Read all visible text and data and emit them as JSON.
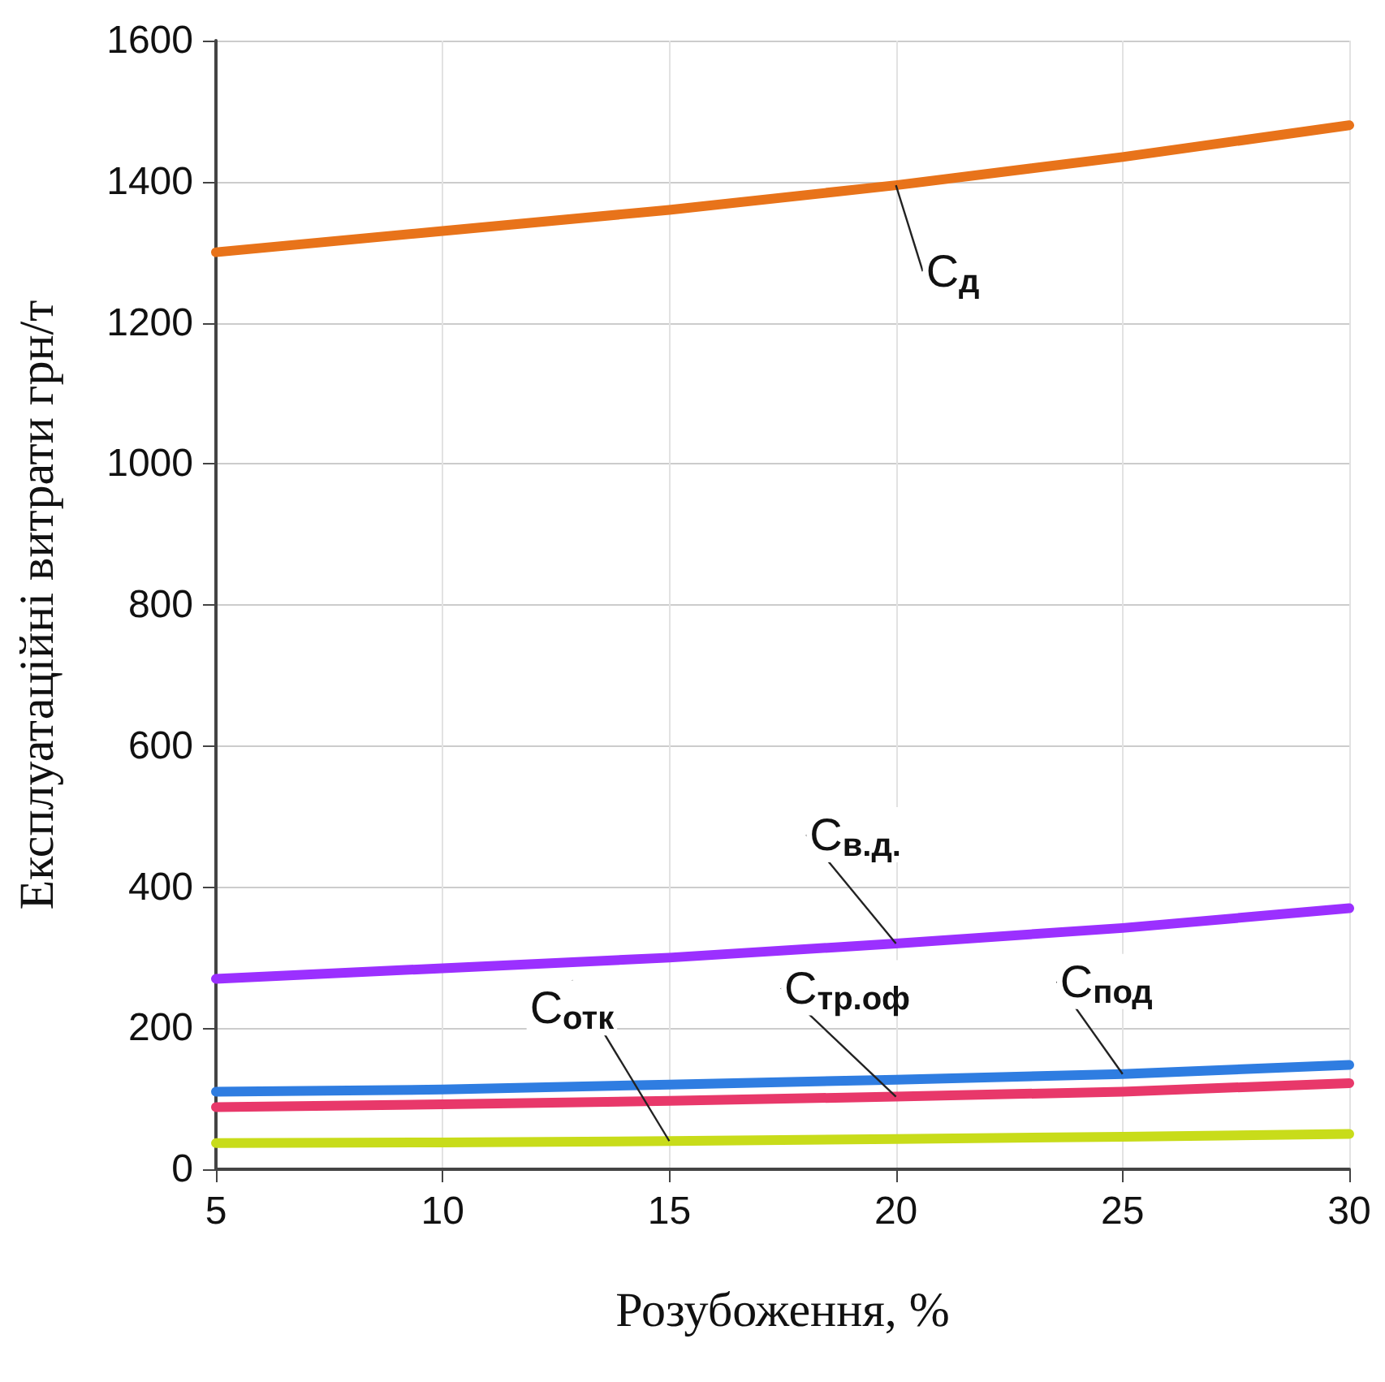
{
  "chart_data": {
    "type": "line",
    "xlabel": "Розубоження, %",
    "ylabel": "Експлуатаційні витрати грн/т",
    "x": [
      5,
      10,
      15,
      20,
      25,
      30
    ],
    "series": [
      {
        "name": "C$_{д}$",
        "color": "#e8731a",
        "values": [
          1300,
          1330,
          1360,
          1395,
          1435,
          1480
        ]
      },
      {
        "name": "C$_{в.д.}$",
        "color": "#9b30ff",
        "values": [
          270,
          285,
          300,
          320,
          342,
          370
        ]
      },
      {
        "name": "C$_{под}$",
        "color": "#2f7de1",
        "values": [
          110,
          113,
          120,
          127,
          135,
          148
        ]
      },
      {
        "name": "C$_{тр.оф}$",
        "color": "#e8386a",
        "values": [
          88,
          92,
          97,
          103,
          110,
          122
        ]
      },
      {
        "name": "C$_{отк}$",
        "color": "#c8dc1a",
        "values": [
          37,
          38,
          40,
          43,
          46,
          50
        ]
      }
    ],
    "xlim": [
      5,
      30
    ],
    "xticks": [
      5,
      10,
      15,
      20,
      25,
      30
    ],
    "ylim": [
      0,
      1600
    ],
    "yticks": [
      0,
      200,
      400,
      600,
      800,
      1000,
      1200,
      1400,
      1600
    ],
    "grid": true,
    "legend": false,
    "marker": "none",
    "line_style": "solid"
  }
}
